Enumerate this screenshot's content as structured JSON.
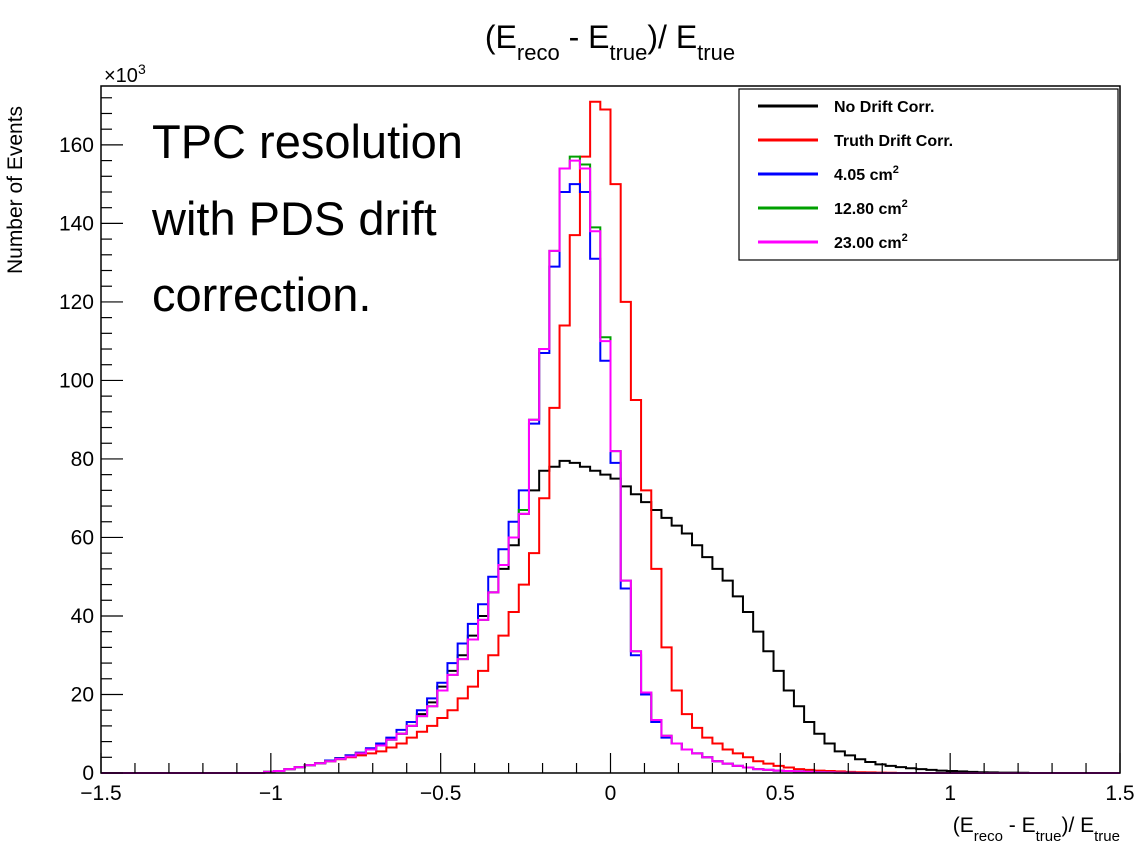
{
  "chart_data": {
    "type": "line",
    "title": {
      "base": "(E",
      "sub1": "reco",
      "mid": " - E",
      "sub2": "true",
      "mid2": ")/ E",
      "sub3": "true"
    },
    "xlabel": {
      "base": "(E",
      "sub1": "reco",
      "mid": " - E",
      "sub2": "true",
      "mid2": ")/ E",
      "sub3": "true"
    },
    "ylabel": "Number of Events",
    "y_multiplier": {
      "base": "×10",
      "exp": "3"
    },
    "xlim": [
      -1.5,
      1.5
    ],
    "ylim": [
      0,
      175
    ],
    "x_ticks": [
      -1.5,
      -1,
      -0.5,
      0,
      0.5,
      1,
      1.5
    ],
    "x_tick_labels": [
      "−1.5",
      "−1",
      "−0.5",
      "0",
      "0.5",
      "1",
      "1.5"
    ],
    "y_ticks": [
      0,
      20,
      40,
      60,
      80,
      100,
      120,
      140,
      160
    ],
    "y_tick_labels": [
      "0",
      "20",
      "40",
      "60",
      "80",
      "100",
      "120",
      "140",
      "160"
    ],
    "annotation": [
      "TPC resolution",
      "with PDS drift",
      "correction."
    ],
    "legend_position": "top-right",
    "bin_edges_start": -1.5,
    "bin_width": 0.03,
    "series": [
      {
        "name": "No Drift Corr.",
        "unit": "",
        "color": "#000000",
        "values": [
          0,
          0,
          0,
          0,
          0,
          0,
          0,
          0,
          0,
          0,
          0,
          0,
          0,
          0,
          0,
          0,
          0.3,
          0.5,
          1,
          1.5,
          2,
          2.5,
          3.2,
          3.8,
          4.5,
          5,
          6,
          7,
          8.5,
          10,
          12,
          15,
          18,
          22,
          26,
          30,
          35,
          40,
          46,
          52,
          58,
          66,
          72,
          77,
          78,
          79.5,
          79,
          78,
          77,
          76,
          75,
          73,
          71,
          69,
          67,
          65,
          63,
          61,
          58,
          55,
          52,
          49,
          45,
          41,
          36,
          31,
          26,
          21,
          17,
          13,
          10,
          7.5,
          5.5,
          4.5,
          3.5,
          2.8,
          2.2,
          1.8,
          1.5,
          1.2,
          1,
          0.8,
          0.6,
          0.5,
          0.4,
          0.3,
          0.2,
          0.15,
          0.1,
          0.1,
          0.05,
          0,
          0,
          0,
          0,
          0,
          0,
          0,
          0,
          0
        ]
      },
      {
        "name": "Truth Drift Corr.",
        "unit": "",
        "color": "#ff0000",
        "values": [
          0,
          0,
          0,
          0,
          0,
          0,
          0,
          0,
          0,
          0,
          0,
          0,
          0,
          0,
          0,
          0,
          0.3,
          0.5,
          1,
          1.5,
          2,
          2.5,
          3,
          3.5,
          4,
          4.5,
          5,
          5.5,
          6.5,
          7.5,
          9,
          10.5,
          12,
          14,
          16,
          19,
          22,
          26,
          30,
          35,
          41,
          48,
          56,
          70,
          93,
          114,
          137,
          157,
          171,
          169,
          150,
          120,
          95,
          72,
          52,
          32,
          21,
          15,
          11.5,
          9,
          7.5,
          6,
          5,
          4,
          3,
          2.4,
          1.8,
          1.4,
          1,
          0.8,
          0.6,
          0.5,
          0.4,
          0.3,
          0.2,
          0.15,
          0.1,
          0.05,
          0,
          0,
          0,
          0,
          0,
          0,
          0,
          0,
          0,
          0,
          0,
          0,
          0,
          0,
          0,
          0,
          0,
          0,
          0,
          0,
          0,
          0
        ]
      },
      {
        "name": "4.05 cm",
        "unit": "2",
        "color": "#0000ff",
        "values": [
          0,
          0,
          0,
          0,
          0,
          0,
          0,
          0,
          0,
          0,
          0,
          0,
          0,
          0,
          0,
          0,
          0.3,
          0.5,
          1,
          1.5,
          2,
          2.5,
          3.2,
          3.8,
          4.5,
          5.2,
          6.3,
          7.5,
          9,
          11,
          13,
          16,
          19,
          23,
          28,
          33,
          38,
          43,
          50,
          57,
          64,
          72,
          89,
          107,
          129,
          148,
          150,
          148,
          131,
          105,
          79,
          47,
          30,
          20,
          13,
          9,
          7.5,
          6,
          5,
          4,
          3,
          2.4,
          1.8,
          1.4,
          1,
          0.8,
          0.6,
          0.5,
          0.4,
          0.3,
          0.2,
          0.15,
          0.1,
          0.05,
          0,
          0,
          0,
          0,
          0,
          0,
          0,
          0,
          0,
          0,
          0,
          0,
          0,
          0,
          0,
          0,
          0,
          0,
          0,
          0,
          0,
          0,
          0,
          0,
          0,
          0
        ]
      },
      {
        "name": "12.80 cm",
        "unit": "2",
        "color": "#00a000",
        "values": [
          0,
          0,
          0,
          0,
          0,
          0,
          0,
          0,
          0,
          0,
          0,
          0,
          0,
          0,
          0,
          0,
          0.3,
          0.5,
          1,
          1.5,
          2,
          2.5,
          3,
          3.6,
          4.2,
          5,
          6,
          7,
          8.5,
          10,
          12,
          14.5,
          17,
          21,
          25,
          29,
          34,
          39,
          46,
          53,
          60,
          67,
          90,
          108,
          133,
          154,
          157,
          155,
          139,
          111,
          82,
          49,
          31,
          20.5,
          13.5,
          9.5,
          7.5,
          6,
          5,
          4,
          3,
          2.4,
          1.8,
          1.4,
          1,
          0.8,
          0.6,
          0.5,
          0.4,
          0.3,
          0.2,
          0.15,
          0.1,
          0.05,
          0,
          0,
          0,
          0,
          0,
          0,
          0,
          0,
          0,
          0,
          0,
          0,
          0,
          0,
          0,
          0,
          0,
          0,
          0,
          0,
          0,
          0,
          0,
          0,
          0,
          0
        ]
      },
      {
        "name": "23.00 cm",
        "unit": "2",
        "color": "#ff00ff",
        "values": [
          0,
          0,
          0,
          0,
          0,
          0,
          0,
          0,
          0,
          0,
          0,
          0,
          0,
          0,
          0,
          0,
          0.3,
          0.5,
          1,
          1.5,
          2,
          2.5,
          3,
          3.6,
          4.2,
          5,
          6,
          7,
          8.5,
          10,
          12,
          14.5,
          17,
          21,
          25,
          29,
          34,
          39,
          46,
          53,
          60,
          66,
          90,
          108,
          133,
          154,
          156,
          154,
          138,
          110,
          82,
          49,
          31,
          20.5,
          13.5,
          9.5,
          7.5,
          6,
          5,
          4,
          3,
          2.4,
          1.8,
          1.4,
          1,
          0.8,
          0.6,
          0.5,
          0.4,
          0.3,
          0.2,
          0.15,
          0.1,
          0.05,
          0,
          0,
          0,
          0,
          0,
          0,
          0,
          0,
          0,
          0,
          0,
          0,
          0,
          0,
          0,
          0,
          0,
          0,
          0,
          0,
          0,
          0,
          0,
          0,
          0,
          0
        ]
      }
    ]
  }
}
